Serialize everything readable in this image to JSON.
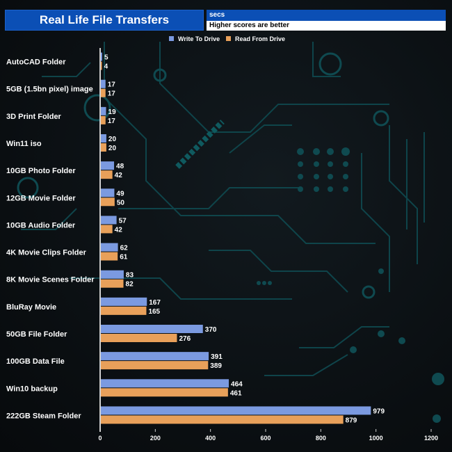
{
  "header": {
    "title": "Real Life File Transfers",
    "units": "secs",
    "note": "Higher scores are better"
  },
  "colors": {
    "write": "#7b9ae0",
    "read": "#e8a05a",
    "header_bg": "#0b4fb5",
    "circuit": "#0f4f55"
  },
  "chart_data": {
    "type": "bar",
    "orientation": "horizontal",
    "title": "Real Life File Transfers",
    "xlabel": "secs",
    "ylabel": "",
    "xlim": [
      0,
      1200
    ],
    "ticks": [
      0,
      200,
      400,
      600,
      800,
      1000,
      1200
    ],
    "categories": [
      "AutoCAD Folder",
      "5GB (1.5bn pixel) image",
      "3D Print Folder",
      "Win11 iso",
      "10GB Photo Folder",
      "12GB Movie Folder",
      "10GB Audio Folder",
      "4K Movie Clips Folder",
      "8K Movie Scenes Folder",
      "BluRay Movie",
      "50GB File Folder",
      "100GB Data File",
      "Win10 backup",
      "222GB Steam Folder"
    ],
    "series": [
      {
        "name": "Write To  Drive",
        "values": [
          5,
          17,
          19,
          20,
          48,
          49,
          57,
          62,
          83,
          167,
          370,
          391,
          464,
          979
        ]
      },
      {
        "name": "Read From  Drive",
        "values": [
          4,
          17,
          17,
          20,
          42,
          50,
          42,
          61,
          82,
          165,
          276,
          389,
          461,
          879
        ]
      }
    ],
    "legend": "top-center"
  }
}
